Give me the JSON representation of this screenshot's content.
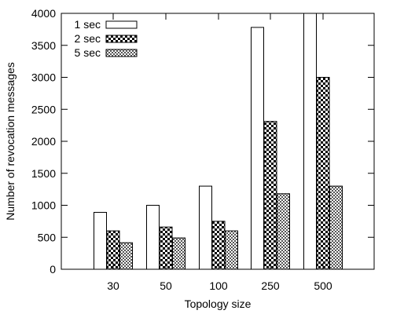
{
  "chart_data": {
    "type": "bar",
    "title": "",
    "xlabel": "Topology size",
    "ylabel": "Number of revocation messages",
    "categories": [
      "30",
      "50",
      "100",
      "250",
      "500"
    ],
    "ylim": [
      0,
      4000
    ],
    "yticks": [
      0,
      500,
      1000,
      1500,
      2000,
      2500,
      3000,
      3500,
      4000
    ],
    "grid": false,
    "legend_position": "top-left",
    "series": [
      {
        "name": "1 sec",
        "pattern": "white",
        "values": [
          890,
          1000,
          1300,
          3780,
          4000
        ]
      },
      {
        "name": "2 sec",
        "pattern": "checker-dense",
        "values": [
          600,
          660,
          750,
          2310,
          3000
        ]
      },
      {
        "name": "5 sec",
        "pattern": "checker-fine",
        "values": [
          415,
          490,
          600,
          1180,
          1300
        ]
      }
    ]
  }
}
